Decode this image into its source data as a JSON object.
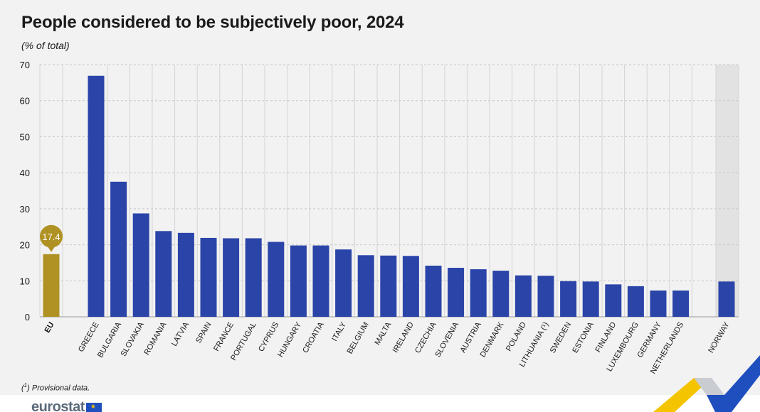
{
  "title": "People considered to be subjectively poor, 2024",
  "subtitle": "(% of total)",
  "footnote_marker": "1",
  "footnote_text": " Provisional data.",
  "footnote_open": "(",
  "footnote_close": ")",
  "logo_text": "eurostat",
  "colors": {
    "eu_bar": "#b09224",
    "country_bar": "#2a44a8",
    "highlight_band": "#e2e2e2",
    "grid": "#c8c8c8",
    "background": "#f2f2f2"
  },
  "chart_data": {
    "type": "bar",
    "ylim": [
      0,
      70
    ],
    "yticks": [
      0,
      10,
      20,
      30,
      40,
      50,
      60,
      70
    ],
    "grid": true,
    "categories": [
      "EU",
      "GREECE",
      "BULGARIA",
      "SLOVAKIA",
      "ROMANIA",
      "LATVIA",
      "SPAIN",
      "FRANCE",
      "PORTUGAL",
      "CYPRUS",
      "HUNGARY",
      "CROATIA",
      "ITALY",
      "BELGIUM",
      "MALTA",
      "IRELAND",
      "CZECHIA",
      "SLOVENIA",
      "AUSTRIA",
      "DENMARK",
      "POLAND",
      "LITHUANIA (¹)",
      "SWEDEN",
      "ESTONIA",
      "FINLAND",
      "LUXEMBOURG",
      "GERMANY",
      "NETHERLANDS",
      "NORWAY"
    ],
    "values": [
      17.4,
      66.9,
      37.5,
      28.7,
      23.8,
      23.3,
      21.9,
      21.8,
      21.8,
      20.8,
      19.8,
      19.8,
      18.7,
      17.1,
      17.0,
      16.9,
      14.2,
      13.6,
      13.2,
      12.8,
      11.5,
      11.4,
      9.9,
      9.8,
      9.0,
      8.5,
      7.3,
      7.3,
      9.8
    ],
    "eu_label": "17.4",
    "highlighted": [
      "NORWAY"
    ]
  }
}
